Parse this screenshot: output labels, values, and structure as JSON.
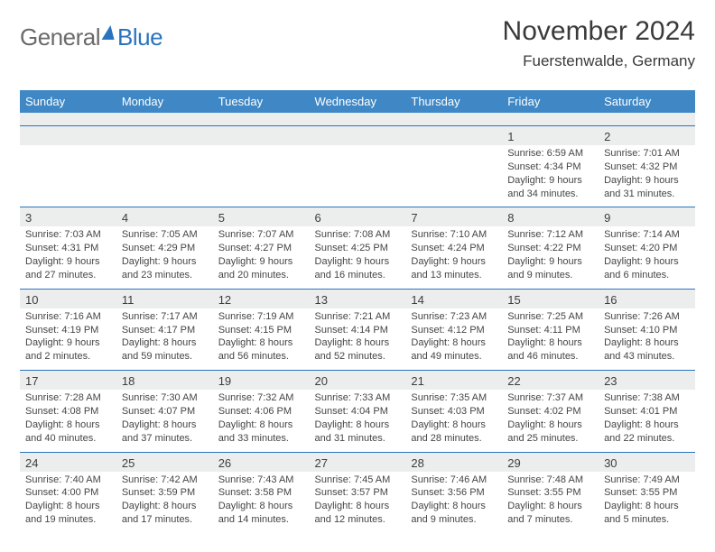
{
  "logo": {
    "general": "General",
    "blue": "Blue"
  },
  "title": {
    "month": "November 2024",
    "location": "Fuerstenwalde, Germany"
  },
  "dayNames": [
    "Sunday",
    "Monday",
    "Tuesday",
    "Wednesday",
    "Thursday",
    "Friday",
    "Saturday"
  ],
  "colors": {
    "headerBar": "#3f88c5",
    "dateRowBg": "#eceded",
    "dateRowBorder": "#2a74bf",
    "text": "#444444",
    "logoBlue": "#2a74bf"
  },
  "weeks": [
    {
      "dates": [
        "",
        "",
        "",
        "",
        "",
        "1",
        "2"
      ],
      "cells": [
        {
          "sunrise": "",
          "sunset": "",
          "daylight": ""
        },
        {
          "sunrise": "",
          "sunset": "",
          "daylight": ""
        },
        {
          "sunrise": "",
          "sunset": "",
          "daylight": ""
        },
        {
          "sunrise": "",
          "sunset": "",
          "daylight": ""
        },
        {
          "sunrise": "",
          "sunset": "",
          "daylight": ""
        },
        {
          "sunrise": "Sunrise: 6:59 AM",
          "sunset": "Sunset: 4:34 PM",
          "daylight": "Daylight: 9 hours and 34 minutes."
        },
        {
          "sunrise": "Sunrise: 7:01 AM",
          "sunset": "Sunset: 4:32 PM",
          "daylight": "Daylight: 9 hours and 31 minutes."
        }
      ]
    },
    {
      "dates": [
        "3",
        "4",
        "5",
        "6",
        "7",
        "8",
        "9"
      ],
      "cells": [
        {
          "sunrise": "Sunrise: 7:03 AM",
          "sunset": "Sunset: 4:31 PM",
          "daylight": "Daylight: 9 hours and 27 minutes."
        },
        {
          "sunrise": "Sunrise: 7:05 AM",
          "sunset": "Sunset: 4:29 PM",
          "daylight": "Daylight: 9 hours and 23 minutes."
        },
        {
          "sunrise": "Sunrise: 7:07 AM",
          "sunset": "Sunset: 4:27 PM",
          "daylight": "Daylight: 9 hours and 20 minutes."
        },
        {
          "sunrise": "Sunrise: 7:08 AM",
          "sunset": "Sunset: 4:25 PM",
          "daylight": "Daylight: 9 hours and 16 minutes."
        },
        {
          "sunrise": "Sunrise: 7:10 AM",
          "sunset": "Sunset: 4:24 PM",
          "daylight": "Daylight: 9 hours and 13 minutes."
        },
        {
          "sunrise": "Sunrise: 7:12 AM",
          "sunset": "Sunset: 4:22 PM",
          "daylight": "Daylight: 9 hours and 9 minutes."
        },
        {
          "sunrise": "Sunrise: 7:14 AM",
          "sunset": "Sunset: 4:20 PM",
          "daylight": "Daylight: 9 hours and 6 minutes."
        }
      ]
    },
    {
      "dates": [
        "10",
        "11",
        "12",
        "13",
        "14",
        "15",
        "16"
      ],
      "cells": [
        {
          "sunrise": "Sunrise: 7:16 AM",
          "sunset": "Sunset: 4:19 PM",
          "daylight": "Daylight: 9 hours and 2 minutes."
        },
        {
          "sunrise": "Sunrise: 7:17 AM",
          "sunset": "Sunset: 4:17 PM",
          "daylight": "Daylight: 8 hours and 59 minutes."
        },
        {
          "sunrise": "Sunrise: 7:19 AM",
          "sunset": "Sunset: 4:15 PM",
          "daylight": "Daylight: 8 hours and 56 minutes."
        },
        {
          "sunrise": "Sunrise: 7:21 AM",
          "sunset": "Sunset: 4:14 PM",
          "daylight": "Daylight: 8 hours and 52 minutes."
        },
        {
          "sunrise": "Sunrise: 7:23 AM",
          "sunset": "Sunset: 4:12 PM",
          "daylight": "Daylight: 8 hours and 49 minutes."
        },
        {
          "sunrise": "Sunrise: 7:25 AM",
          "sunset": "Sunset: 4:11 PM",
          "daylight": "Daylight: 8 hours and 46 minutes."
        },
        {
          "sunrise": "Sunrise: 7:26 AM",
          "sunset": "Sunset: 4:10 PM",
          "daylight": "Daylight: 8 hours and 43 minutes."
        }
      ]
    },
    {
      "dates": [
        "17",
        "18",
        "19",
        "20",
        "21",
        "22",
        "23"
      ],
      "cells": [
        {
          "sunrise": "Sunrise: 7:28 AM",
          "sunset": "Sunset: 4:08 PM",
          "daylight": "Daylight: 8 hours and 40 minutes."
        },
        {
          "sunrise": "Sunrise: 7:30 AM",
          "sunset": "Sunset: 4:07 PM",
          "daylight": "Daylight: 8 hours and 37 minutes."
        },
        {
          "sunrise": "Sunrise: 7:32 AM",
          "sunset": "Sunset: 4:06 PM",
          "daylight": "Daylight: 8 hours and 33 minutes."
        },
        {
          "sunrise": "Sunrise: 7:33 AM",
          "sunset": "Sunset: 4:04 PM",
          "daylight": "Daylight: 8 hours and 31 minutes."
        },
        {
          "sunrise": "Sunrise: 7:35 AM",
          "sunset": "Sunset: 4:03 PM",
          "daylight": "Daylight: 8 hours and 28 minutes."
        },
        {
          "sunrise": "Sunrise: 7:37 AM",
          "sunset": "Sunset: 4:02 PM",
          "daylight": "Daylight: 8 hours and 25 minutes."
        },
        {
          "sunrise": "Sunrise: 7:38 AM",
          "sunset": "Sunset: 4:01 PM",
          "daylight": "Daylight: 8 hours and 22 minutes."
        }
      ]
    },
    {
      "dates": [
        "24",
        "25",
        "26",
        "27",
        "28",
        "29",
        "30"
      ],
      "cells": [
        {
          "sunrise": "Sunrise: 7:40 AM",
          "sunset": "Sunset: 4:00 PM",
          "daylight": "Daylight: 8 hours and 19 minutes."
        },
        {
          "sunrise": "Sunrise: 7:42 AM",
          "sunset": "Sunset: 3:59 PM",
          "daylight": "Daylight: 8 hours and 17 minutes."
        },
        {
          "sunrise": "Sunrise: 7:43 AM",
          "sunset": "Sunset: 3:58 PM",
          "daylight": "Daylight: 8 hours and 14 minutes."
        },
        {
          "sunrise": "Sunrise: 7:45 AM",
          "sunset": "Sunset: 3:57 PM",
          "daylight": "Daylight: 8 hours and 12 minutes."
        },
        {
          "sunrise": "Sunrise: 7:46 AM",
          "sunset": "Sunset: 3:56 PM",
          "daylight": "Daylight: 8 hours and 9 minutes."
        },
        {
          "sunrise": "Sunrise: 7:48 AM",
          "sunset": "Sunset: 3:55 PM",
          "daylight": "Daylight: 8 hours and 7 minutes."
        },
        {
          "sunrise": "Sunrise: 7:49 AM",
          "sunset": "Sunset: 3:55 PM",
          "daylight": "Daylight: 8 hours and 5 minutes."
        }
      ]
    }
  ]
}
